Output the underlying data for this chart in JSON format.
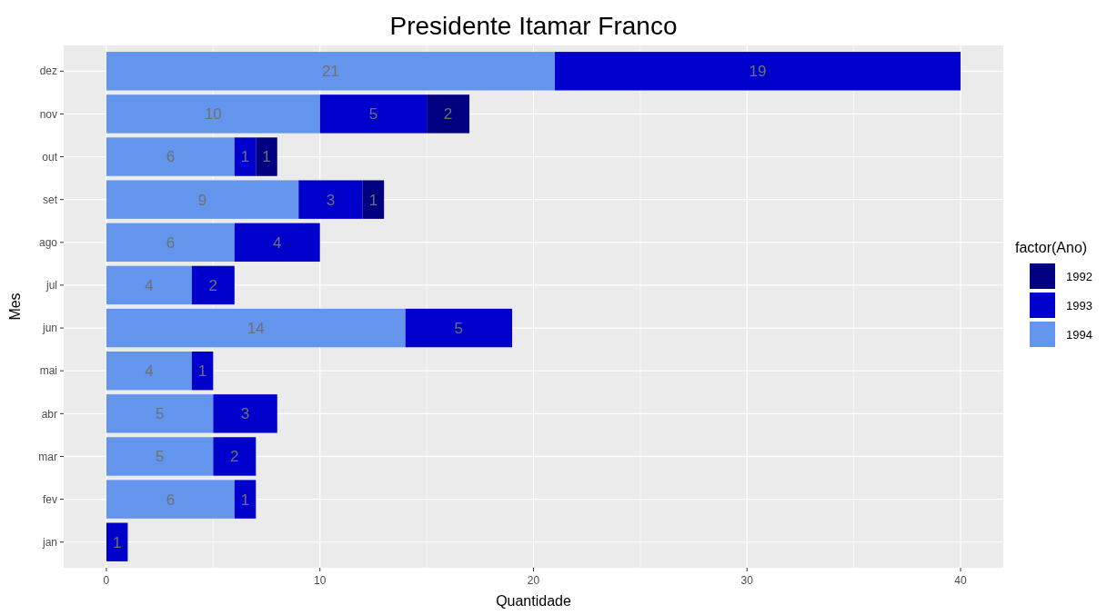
{
  "chart_data": {
    "type": "bar",
    "title": "Presidente  Itamar Franco",
    "xlabel": "Quantidade",
    "ylabel": "Mes",
    "legend_title": "factor(Ano)",
    "orientation": "horizontal",
    "stacked": true,
    "data_labels": true,
    "grid": true,
    "legend": "right",
    "categories": [
      "dez",
      "nov",
      "out",
      "set",
      "ago",
      "jul",
      "jun",
      "mai",
      "abr",
      "mar",
      "fev",
      "jan"
    ],
    "xlim": [
      -2,
      42
    ],
    "xticks": [
      0,
      10,
      20,
      30,
      40
    ],
    "series": [
      {
        "name": "1994",
        "color": "#6495ed",
        "values": [
          21,
          10,
          6,
          9,
          6,
          4,
          14,
          4,
          5,
          5,
          6,
          null
        ]
      },
      {
        "name": "1993",
        "color": "#0000cd",
        "values": [
          19,
          5,
          1,
          3,
          4,
          2,
          5,
          1,
          3,
          2,
          1,
          1
        ]
      },
      {
        "name": "1992",
        "color": "#000080",
        "values": [
          null,
          2,
          1,
          1,
          null,
          null,
          null,
          null,
          null,
          null,
          null,
          null
        ]
      }
    ]
  }
}
